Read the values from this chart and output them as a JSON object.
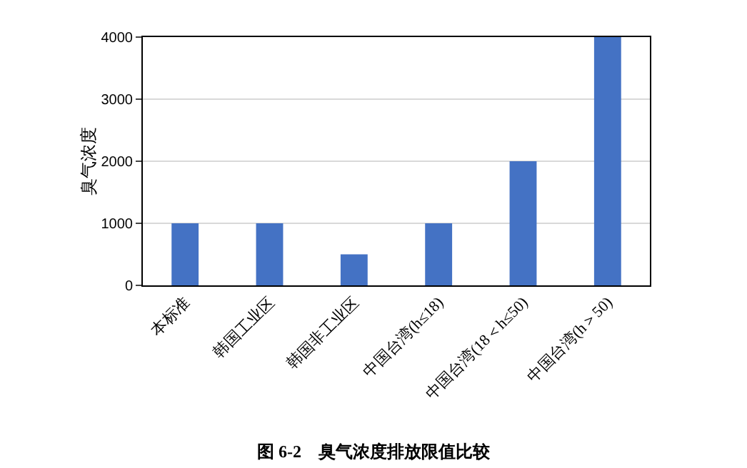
{
  "chart_data": {
    "type": "bar",
    "title": "图 6-2　臭气浓度排放限值比较",
    "ylabel": "臭气浓度",
    "categories": [
      "本标准",
      "韩国工业区",
      "韩国非工业区",
      "中国台湾(h≤18)",
      "中国台湾(18＜h≤50)",
      "中国台湾(h＞50)"
    ],
    "values": [
      1000,
      1000,
      500,
      1000,
      2000,
      4000
    ],
    "color": "#4472c4",
    "ylim": [
      0,
      4000
    ],
    "yticks": [
      0,
      1000,
      2000,
      3000,
      4000
    ],
    "grid": "y"
  }
}
